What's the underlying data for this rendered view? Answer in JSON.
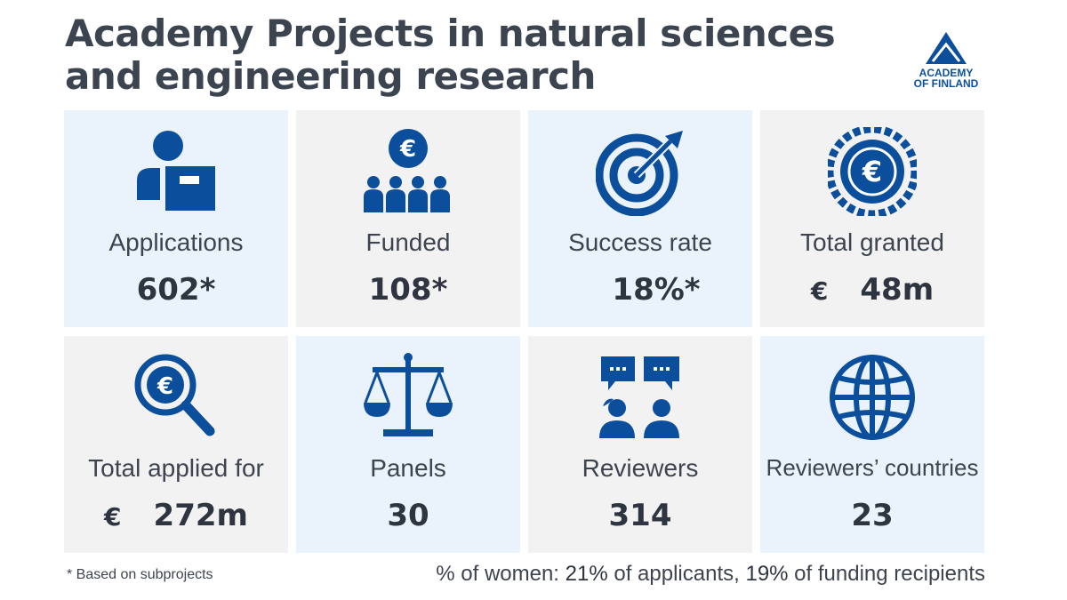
{
  "title": "Academy Projects in natural sciences and engineering research",
  "logo": {
    "line1": "ACADEMY",
    "line2": "OF FINLAND"
  },
  "colors": {
    "brand": "#0b4f9c",
    "tile_blue": "#eaf2fb",
    "tile_gray": "#f2f2f2",
    "text": "#3d4450"
  },
  "tiles": [
    {
      "icon": "applicant-icon",
      "label": "Applications",
      "value": "602*"
    },
    {
      "icon": "funded-group-icon",
      "label": "Funded",
      "value": "108*"
    },
    {
      "icon": "target-icon",
      "label": "Success rate",
      "value": "18%*"
    },
    {
      "icon": "euro-coin-icon",
      "label": "Total granted",
      "currency": "€",
      "value": "48",
      "unit": "m"
    },
    {
      "icon": "euro-search-icon",
      "label": "Total applied for",
      "currency": "€",
      "value": "272",
      "unit": "m"
    },
    {
      "icon": "scales-icon",
      "label": "Panels",
      "value": "30"
    },
    {
      "icon": "reviewers-icon",
      "label": "Reviewers",
      "value": "314"
    },
    {
      "icon": "globe-icon",
      "label": "Reviewers’ countries",
      "value": "23"
    }
  ],
  "footnote": "* Based on subprojects",
  "women": {
    "prefix": "% of women: ",
    "applicants_pct": "21%",
    "applicants_text": " of applicants, ",
    "recipients_pct": "19%",
    "recipients_text": " of funding recipients"
  }
}
